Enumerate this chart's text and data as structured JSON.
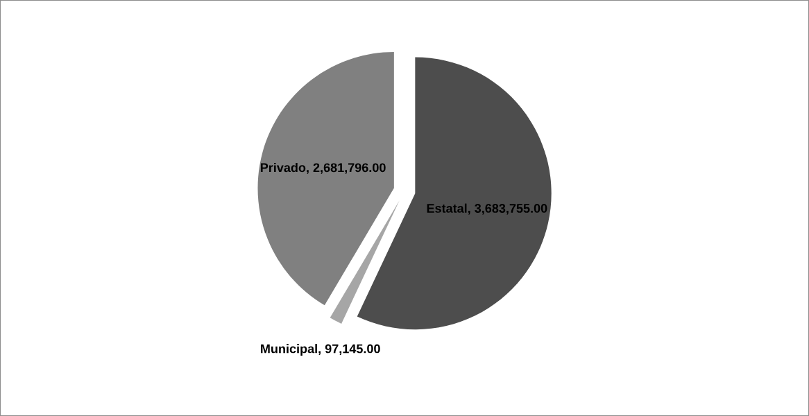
{
  "chart_data": {
    "type": "pie",
    "categories": [
      "Estatal",
      "Municipal",
      "Privado"
    ],
    "values": [
      3683755,
      97145,
      2681796
    ],
    "value_labels": [
      "3,683,755.00",
      "97,145.00",
      "2,681,796.00"
    ],
    "colors": [
      "#4d4d4d",
      "#a6a6a6",
      "#808080"
    ],
    "legend": false
  }
}
